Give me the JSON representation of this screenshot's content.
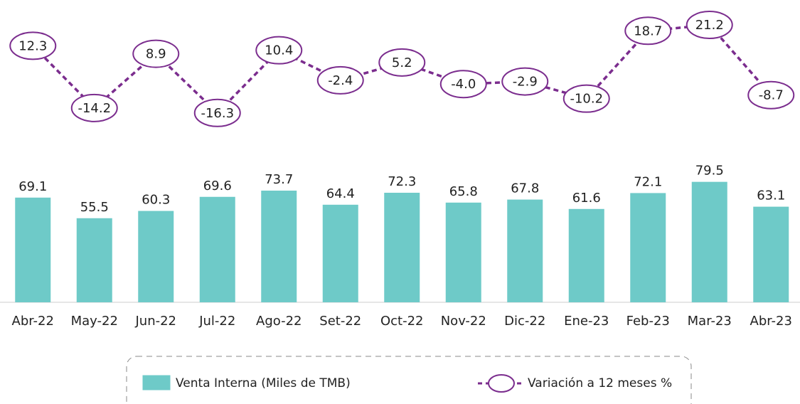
{
  "chart_data": {
    "type": "bar-line",
    "categories": [
      "Abr-22",
      "May-22",
      "Jun-22",
      "Jul-22",
      "Ago-22",
      "Set-22",
      "Oct-22",
      "Nov-22",
      "Dic-22",
      "Ene-23",
      "Feb-23",
      "Mar-23",
      "Abr-23"
    ],
    "series": [
      {
        "name": "Venta Interna (Miles de TMB)",
        "type": "bar",
        "color": "#6ecac8",
        "values": [
          69.1,
          55.5,
          60.3,
          69.6,
          73.7,
          64.4,
          72.3,
          65.8,
          67.8,
          61.6,
          72.1,
          79.5,
          63.1
        ]
      },
      {
        "name": "Variación a 12 meses %",
        "type": "line",
        "color": "#7b2d8e",
        "values": [
          12.3,
          -14.2,
          8.9,
          -16.3,
          10.4,
          -2.4,
          5.2,
          -4.0,
          -2.9,
          -10.2,
          18.7,
          21.2,
          -8.7
        ],
        "value_labels": [
          "12.3",
          "-14.2",
          "8.9",
          "-16.3",
          "10.4",
          "-2.4",
          "5.2",
          "-4.0",
          "-2.9",
          "-10.2",
          "18.7",
          "21.2",
          "-8.7"
        ]
      }
    ]
  }
}
